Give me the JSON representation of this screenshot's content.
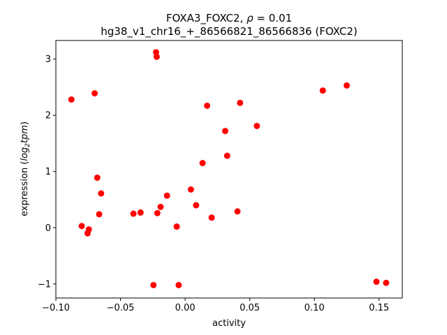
{
  "chart_data": {
    "type": "scatter",
    "title_line1_prefix": "FOXA3_FOXC2, ",
    "title_rho_symbol": "ρ",
    "title_rho_value": " = 0.01",
    "title_line2": "hg38_v1_chr16_+_86566821_86566836 (FOXC2)",
    "xlabel": "activity",
    "ylabel_prefix": "expression (",
    "ylabel_log": "log",
    "ylabel_sub": "2",
    "ylabel_tpm": "tpm",
    "ylabel_suffix": ")",
    "xlim": [
      -0.1,
      0.168
    ],
    "ylim": [
      -1.25,
      3.33
    ],
    "xticks": [
      {
        "value": -0.1,
        "label": "−0.10"
      },
      {
        "value": -0.05,
        "label": "−0.05"
      },
      {
        "value": 0.0,
        "label": "0.00"
      },
      {
        "value": 0.05,
        "label": "0.05"
      },
      {
        "value": 0.1,
        "label": "0.10"
      },
      {
        "value": 0.15,
        "label": "0.15"
      }
    ],
    "yticks": [
      {
        "value": -1,
        "label": "−1"
      },
      {
        "value": 0,
        "label": "0"
      },
      {
        "value": 1,
        "label": "1"
      },
      {
        "value": 2,
        "label": "2"
      },
      {
        "value": 3,
        "label": "3"
      }
    ],
    "marker_color": "#ff0000",
    "grid": false,
    "points": [
      {
        "x": -0.088,
        "y": 2.28
      },
      {
        "x": -0.07,
        "y": 2.39
      },
      {
        "x": -0.0225,
        "y": 3.12
      },
      {
        "x": -0.022,
        "y": 3.04
      },
      {
        "x": 0.017,
        "y": 2.17
      },
      {
        "x": 0.0425,
        "y": 2.22
      },
      {
        "x": 0.031,
        "y": 1.72
      },
      {
        "x": 0.0555,
        "y": 1.81
      },
      {
        "x": 0.1065,
        "y": 2.44
      },
      {
        "x": 0.125,
        "y": 2.53
      },
      {
        "x": 0.0325,
        "y": 1.28
      },
      {
        "x": 0.0135,
        "y": 1.15
      },
      {
        "x": -0.068,
        "y": 0.89
      },
      {
        "x": -0.065,
        "y": 0.61
      },
      {
        "x": 0.0045,
        "y": 0.68
      },
      {
        "x": -0.014,
        "y": 0.57
      },
      {
        "x": 0.0085,
        "y": 0.4
      },
      {
        "x": -0.019,
        "y": 0.37
      },
      {
        "x": -0.0665,
        "y": 0.24
      },
      {
        "x": -0.04,
        "y": 0.25
      },
      {
        "x": -0.0345,
        "y": 0.27
      },
      {
        "x": -0.0215,
        "y": 0.26
      },
      {
        "x": 0.0405,
        "y": 0.29
      },
      {
        "x": 0.0205,
        "y": 0.18
      },
      {
        "x": -0.08,
        "y": 0.03
      },
      {
        "x": -0.0065,
        "y": 0.02
      },
      {
        "x": -0.0745,
        "y": -0.03
      },
      {
        "x": -0.0755,
        "y": -0.1
      },
      {
        "x": -0.0245,
        "y": -1.02
      },
      {
        "x": -0.005,
        "y": -1.02
      },
      {
        "x": 0.148,
        "y": -0.96
      },
      {
        "x": 0.1555,
        "y": -0.98
      }
    ]
  }
}
